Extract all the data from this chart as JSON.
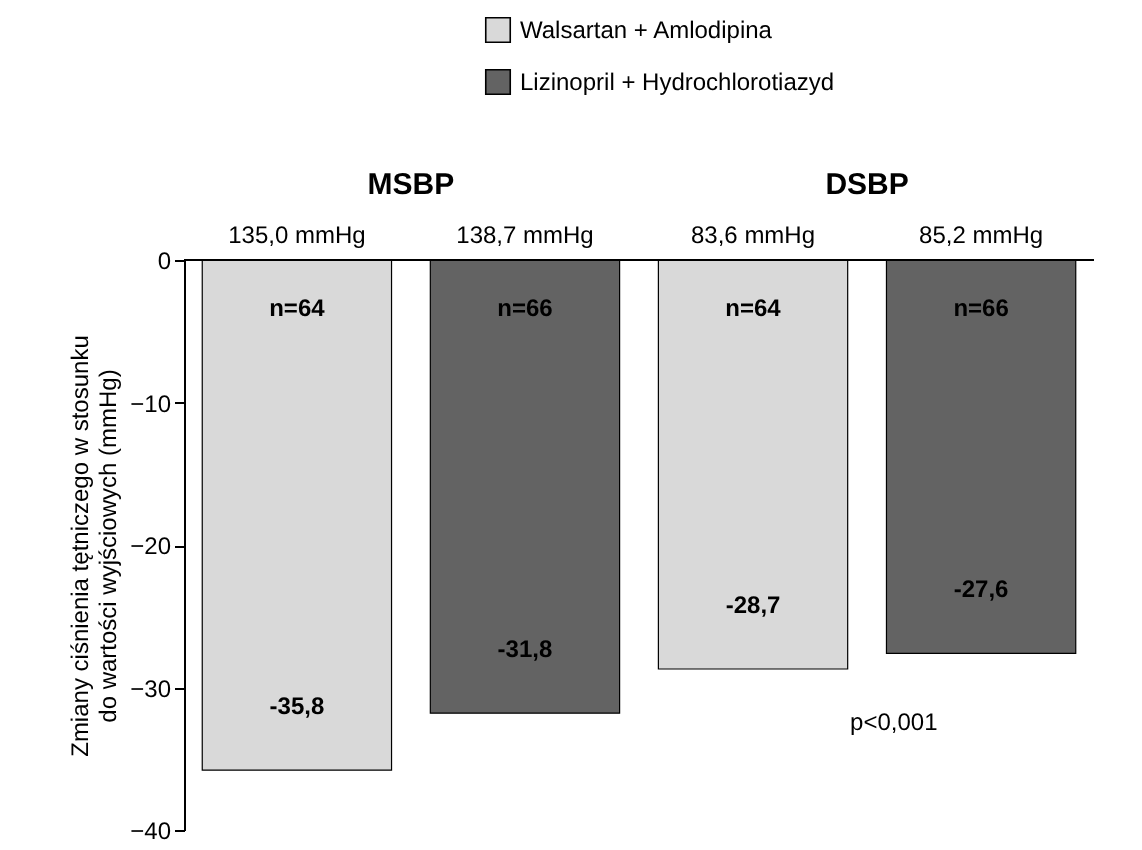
{
  "chart_data": {
    "type": "bar",
    "ylabel": "Zmiany ciśnienia tętniczego w stosunku do wartości wyjściowych (mmHg)",
    "categories": [
      "135,0 mmHg",
      "138,7 mmHg",
      "83,6 mmHg",
      "85,2 mmHg"
    ],
    "series": [
      {
        "name": "Walsartan + Amlodipina",
        "color": "#d9d9d9",
        "values": [
          -35.8,
          null,
          -28.7,
          null
        ],
        "value_labels": [
          "-35,8",
          null,
          "-28,7",
          null
        ]
      },
      {
        "name": "Lizinopril + Hydrochlorotiazyd",
        "color": "#636363",
        "values": [
          null,
          -31.8,
          null,
          -27.6
        ],
        "value_labels": [
          null,
          "-31,8",
          null,
          "-27,6"
        ]
      }
    ],
    "ylim": [
      -40,
      0
    ],
    "yticks": [
      -40,
      -30,
      -20,
      -10,
      0
    ],
    "grid": false,
    "legend": "top",
    "annotations": [
      "MSBP",
      "DSBP",
      "n=64",
      "n=66",
      "n=64",
      "n=66",
      "p<0,001"
    ]
  }
}
